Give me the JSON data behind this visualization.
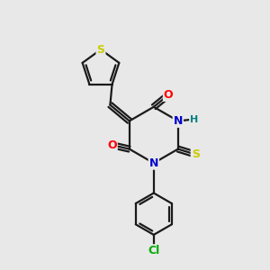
{
  "bg_color": "#e8e8e8",
  "bond_color": "#1a1a1a",
  "atom_colors": {
    "O": "#ff0000",
    "N": "#0000cc",
    "S_thioxo": "#cccc00",
    "S_thiophene": "#cccc00",
    "H": "#008080",
    "Cl": "#00aa00"
  },
  "bond_lw": 1.6,
  "font_size_atoms": 9
}
